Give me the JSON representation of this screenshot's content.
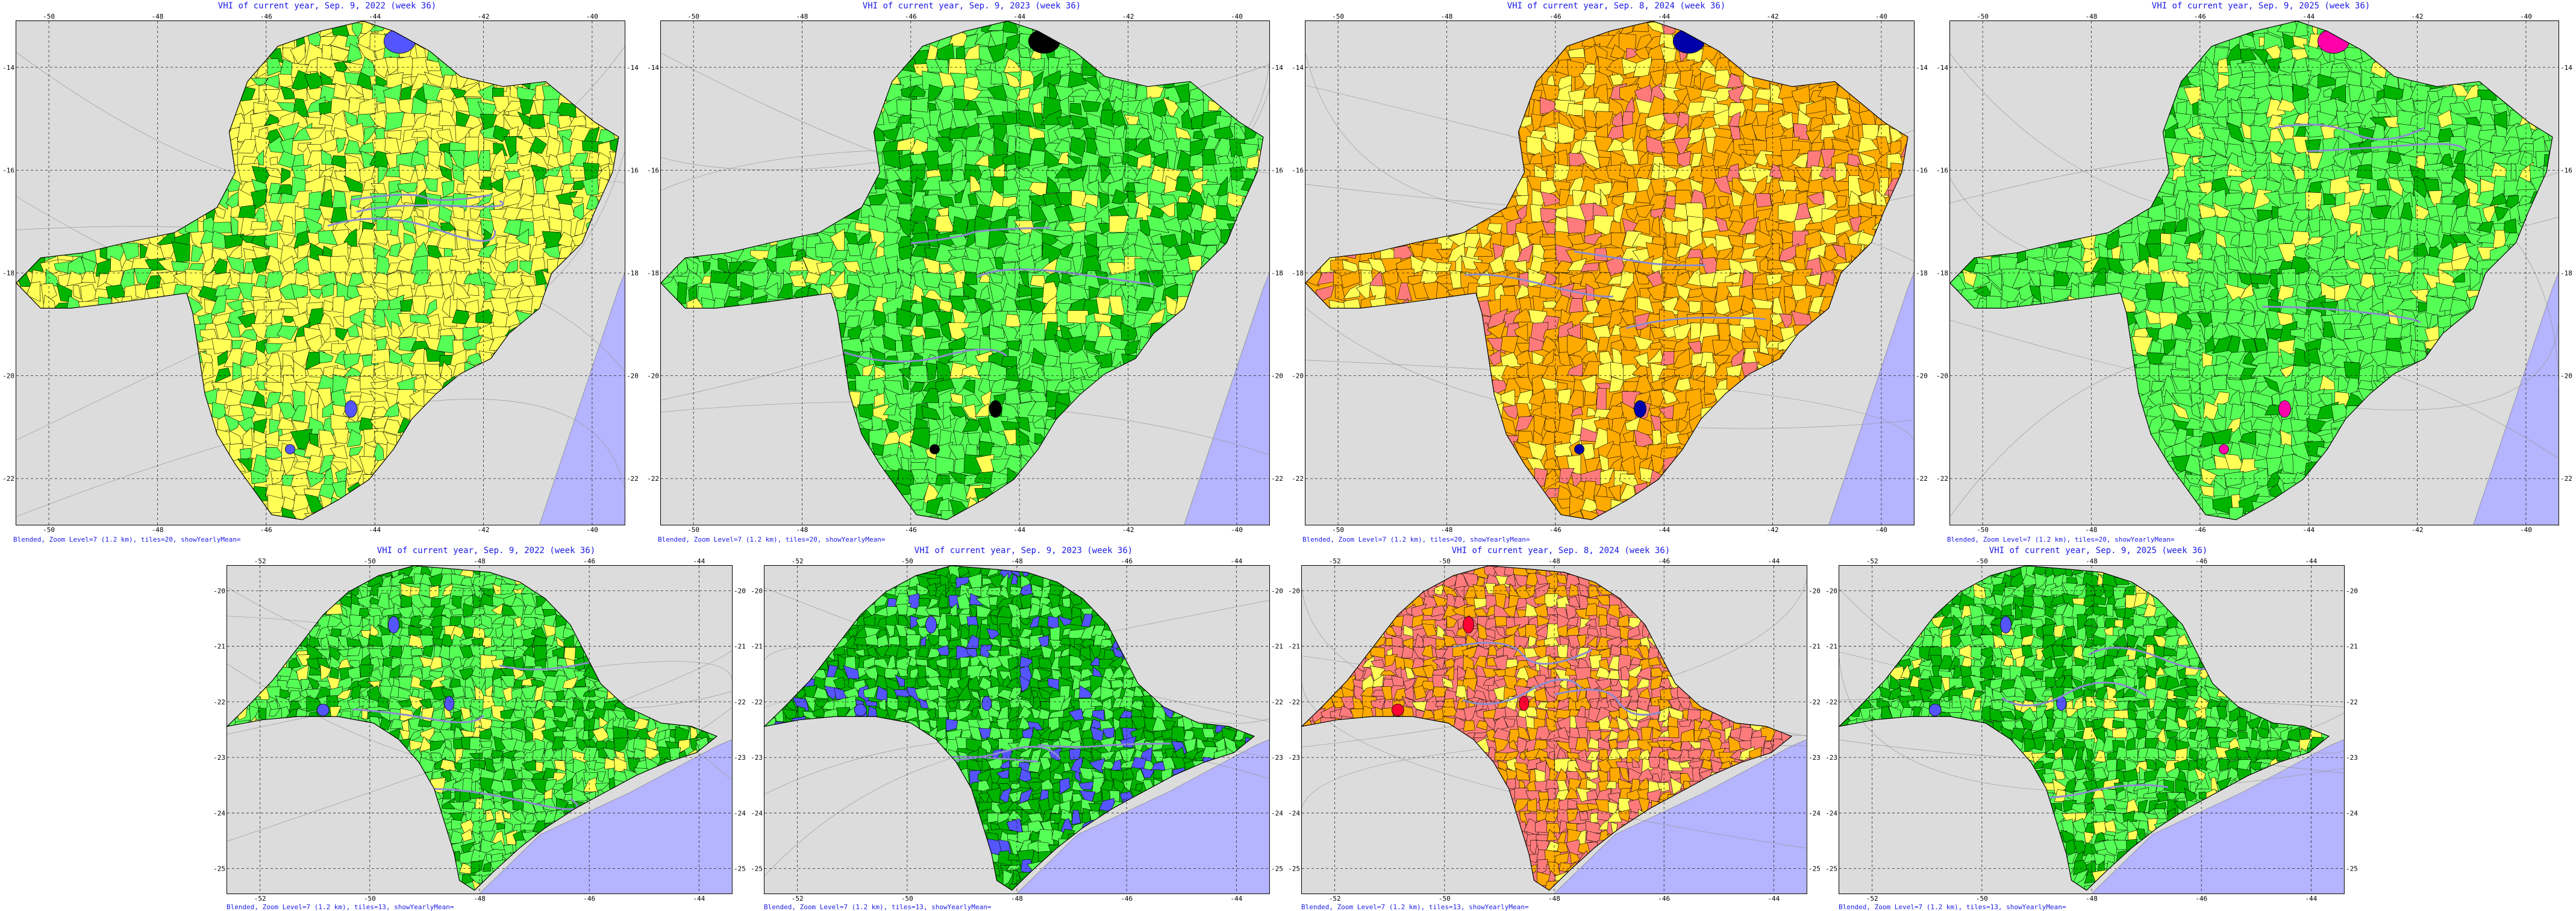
{
  "colors": {
    "background": "#dcdcdc",
    "water": "#b4b4ff",
    "title": "#1a1ae6",
    "yellow": "#ffff55",
    "light_green": "#55ff55",
    "dark_green": "#00b400",
    "orange": "#ffaa00",
    "salmon": "#ff7b7b",
    "blue": "#5555ff",
    "black": "#000000",
    "navy": "#0000aa",
    "magenta": "#ff00aa",
    "red": "#ff0033"
  },
  "panels": [
    {
      "id": "mg-2022",
      "region": "minas",
      "title": "VHI of current year, Sep. 9, 2022 (week 36)",
      "footer": "Blended, Zoom Level=7 (1.2 km), tiles=20, showYearlyMean=",
      "palette": [
        "yellow",
        "yellow",
        "yellow",
        "light_green",
        "light_green",
        "yellow",
        "dark_green"
      ],
      "special": "blue",
      "x_ticks": [
        "-50",
        "-48",
        "-46",
        "-44",
        "-42",
        "-40"
      ],
      "y_ticks": [
        "-14",
        "-16",
        "-18",
        "-20",
        "-22"
      ]
    },
    {
      "id": "mg-2023",
      "region": "minas",
      "title": "VHI of current year, Sep. 9, 2023 (week 36)",
      "footer": "Blended, Zoom Level=7 (1.2 km), tiles=20, showYearlyMean=",
      "palette": [
        "light_green",
        "light_green",
        "light_green",
        "dark_green",
        "dark_green",
        "yellow",
        "light_green"
      ],
      "special": "black",
      "x_ticks": [
        "-50",
        "-48",
        "-46",
        "-44",
        "-42",
        "-40"
      ],
      "y_ticks": [
        "-14",
        "-16",
        "-18",
        "-20",
        "-22"
      ]
    },
    {
      "id": "mg-2024",
      "region": "minas",
      "title": "VHI of current year, Sep. 8, 2024 (week 36)",
      "footer": "Blended, Zoom Level=7 (1.2 km), tiles=20, showYearlyMean=",
      "palette": [
        "orange",
        "orange",
        "orange",
        "yellow",
        "orange",
        "yellow",
        "salmon"
      ],
      "special": "navy",
      "x_ticks": [
        "-50",
        "-48",
        "-46",
        "-44",
        "-42",
        "-40"
      ],
      "y_ticks": [
        "-14",
        "-16",
        "-18",
        "-20",
        "-22"
      ]
    },
    {
      "id": "mg-2025",
      "region": "minas",
      "title": "VHI of current year, Sep. 9, 2025 (week 36)",
      "footer": "Blended, Zoom Level=7 (1.2 km), tiles=20, showYearlyMean=",
      "palette": [
        "light_green",
        "light_green",
        "light_green",
        "light_green",
        "yellow",
        "dark_green",
        "light_green"
      ],
      "special": "magenta",
      "x_ticks": [
        "-50",
        "-48",
        "-46",
        "-44",
        "-42",
        "-40"
      ],
      "y_ticks": [
        "-14",
        "-16",
        "-18",
        "-20",
        "-22"
      ]
    },
    {
      "id": "sp-2022",
      "region": "saopaulo",
      "title": "VHI of current year, Sep. 9, 2022 (week 36)",
      "footer": "Blended, Zoom Level=7 (1.2 km), tiles=13, showYearlyMean=",
      "palette": [
        "light_green",
        "light_green",
        "dark_green",
        "light_green",
        "yellow",
        "dark_green",
        "light_green"
      ],
      "special": "blue",
      "x_ticks": [
        "-52",
        "-50",
        "-48",
        "-46",
        "-44"
      ],
      "y_ticks": [
        "-20",
        "-21",
        "-22",
        "-23",
        "-24",
        "-25"
      ]
    },
    {
      "id": "sp-2023",
      "region": "saopaulo",
      "title": "VHI of current year, Sep. 9, 2023 (week 36)",
      "footer": "Blended, Zoom Level=7 (1.2 km), tiles=13, showYearlyMean=",
      "palette": [
        "dark_green",
        "light_green",
        "dark_green",
        "light_green",
        "dark_green",
        "light_green",
        "blue"
      ],
      "special": "blue",
      "x_ticks": [
        "-52",
        "-50",
        "-48",
        "-46",
        "-44"
      ],
      "y_ticks": [
        "-20",
        "-21",
        "-22",
        "-23",
        "-24",
        "-25"
      ]
    },
    {
      "id": "sp-2024",
      "region": "saopaulo",
      "title": "VHI of current year, Sep. 8, 2024 (week 36)",
      "footer": "Blended, Zoom Level=7 (1.2 km), tiles=13, showYearlyMean=",
      "palette": [
        "salmon",
        "orange",
        "salmon",
        "orange",
        "orange",
        "salmon",
        "yellow"
      ],
      "special": "red",
      "x_ticks": [
        "-52",
        "-50",
        "-48",
        "-46",
        "-44"
      ],
      "y_ticks": [
        "-20",
        "-21",
        "-22",
        "-23",
        "-24",
        "-25"
      ]
    },
    {
      "id": "sp-2025",
      "region": "saopaulo",
      "title": "VHI of current year, Sep. 9, 2025 (week 36)",
      "footer": "Blended, Zoom Level=7 (1.2 km), tiles=13, showYearlyMean=",
      "palette": [
        "light_green",
        "dark_green",
        "light_green",
        "dark_green",
        "dark_green",
        "yellow",
        "light_green"
      ],
      "special": "blue",
      "x_ticks": [
        "-52",
        "-50",
        "-48",
        "-46",
        "-44"
      ],
      "y_ticks": [
        "-20",
        "-21",
        "-22",
        "-23",
        "-24",
        "-25"
      ]
    }
  ]
}
